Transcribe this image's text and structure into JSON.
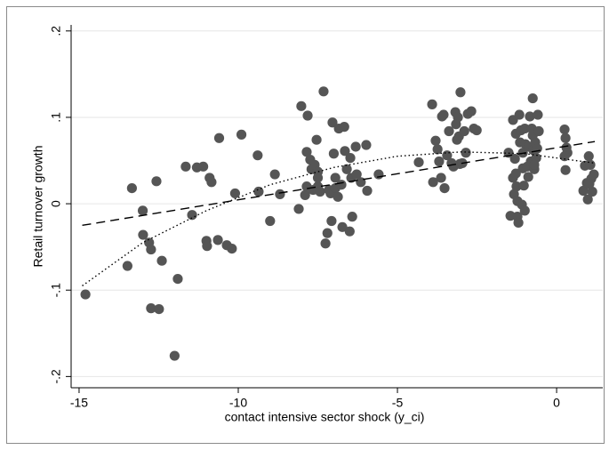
{
  "chart_data": {
    "type": "scatter",
    "x_label": "contact intensive sector shock (y_ci)",
    "y_label": "Retail turnover growth",
    "xlim": [
      -15.25,
      1.45
    ],
    "ylim": [
      -0.213,
      0.207
    ],
    "xticks": [
      -15,
      -10,
      -5,
      0
    ],
    "yticks": [
      {
        "value": 0.2,
        "label": ".2"
      },
      {
        "value": 0.1,
        "label": ".1"
      },
      0,
      {
        "value": -0.1,
        "label": "-.1"
      },
      {
        "value": -0.2,
        "label": "-.2"
      }
    ],
    "grid": true,
    "series": [
      {
        "mark": "point",
        "color": "#555555",
        "x": [
          -14.8,
          -13.48,
          -13.34,
          -13.0,
          -12.99,
          -12.8,
          -12.74,
          -12.74,
          -12.57,
          -12.49,
          -12.4,
          -12.0,
          -11.9,
          -11.65,
          -11.45,
          -11.3,
          -11.1,
          -11.0,
          -10.98,
          -10.9,
          -10.84,
          -10.64,
          -10.6,
          -10.36,
          -10.2,
          -10.1,
          -9.9,
          -9.39,
          -9.36,
          -9.0,
          -8.85,
          -8.69,
          -8.1,
          -8.02,
          -7.9,
          -7.85,
          -7.85,
          -7.82,
          -7.74,
          -7.7,
          -7.65,
          -7.6,
          -7.5,
          -7.5,
          -7.5,
          -7.54,
          -7.43,
          -7.32,
          -7.26,
          -7.2,
          -7.15,
          -7.1,
          -7.07,
          -7.04,
          -7.0,
          -6.95,
          -6.95,
          -6.87,
          -6.84,
          -6.76,
          -6.73,
          -6.67,
          -6.65,
          -6.59,
          -6.5,
          -6.48,
          -6.45,
          -6.42,
          -6.31,
          -6.28,
          -6.15,
          -5.98,
          -5.95,
          -5.59,
          -4.33,
          -3.91,
          -3.88,
          -3.8,
          -3.74,
          -3.69,
          -3.63,
          -3.6,
          -3.55,
          -3.52,
          -3.44,
          -3.38,
          -3.3,
          -3.24,
          -3.18,
          -3.16,
          -3.13,
          -3.1,
          -3.07,
          -3.04,
          -3.02,
          -2.96,
          -2.9,
          -2.85,
          -2.79,
          -2.68,
          -2.6,
          -2.51,
          -1.51,
          -1.45,
          -1.37,
          -1.37,
          -1.34,
          -1.31,
          -1.28,
          -1.28,
          -1.26,
          -1.23,
          -1.23,
          -1.2,
          -1.17,
          -1.15,
          -1.12,
          -1.09,
          -1.06,
          -1.06,
          -1.03,
          -1.0,
          -1.0,
          -0.98,
          -0.92,
          -0.89,
          -0.87,
          -0.84,
          -0.81,
          -0.78,
          -0.75,
          -0.73,
          -0.7,
          -0.67,
          -0.64,
          -0.61,
          -0.59,
          -0.56,
          -0.75,
          -0.7,
          0.25,
          0.28,
          0.31,
          0.28,
          0.34,
          0.25,
          0.84,
          0.89,
          0.95,
          0.98,
          1.01,
          1.06,
          1.09,
          1.12,
          1.17,
          1.03
        ],
        "values": [
          -0.105,
          -0.072,
          0.018,
          -0.008,
          -0.036,
          -0.045,
          -0.053,
          -0.121,
          0.026,
          -0.122,
          -0.066,
          -0.176,
          -0.087,
          0.043,
          -0.013,
          0.042,
          0.043,
          -0.043,
          -0.049,
          0.03,
          0.025,
          -0.042,
          0.076,
          -0.048,
          -0.052,
          0.012,
          0.08,
          0.056,
          0.014,
          -0.02,
          0.034,
          0.011,
          -0.006,
          0.113,
          0.01,
          0.06,
          0.02,
          0.102,
          0.051,
          0.04,
          0.016,
          0.045,
          0.02,
          0.037,
          0.03,
          0.074,
          0.014,
          0.13,
          -0.046,
          -0.034,
          0.016,
          0.012,
          -0.02,
          0.094,
          0.058,
          0.03,
          0.018,
          0.008,
          0.087,
          0.022,
          -0.027,
          0.089,
          0.061,
          0.04,
          -0.032,
          0.053,
          0.03,
          -0.015,
          0.066,
          0.034,
          0.025,
          0.068,
          0.015,
          0.034,
          0.048,
          0.115,
          0.025,
          0.073,
          0.063,
          0.049,
          0.03,
          0.101,
          0.103,
          0.018,
          0.056,
          0.084,
          0.047,
          0.043,
          0.106,
          0.092,
          0.074,
          0.1,
          0.078,
          0.046,
          0.129,
          0.047,
          0.084,
          0.059,
          0.104,
          0.107,
          0.087,
          0.085,
          0.059,
          -0.014,
          0.03,
          0.097,
          0.011,
          0.052,
          0.081,
          0.035,
          0.02,
          -0.015,
          0.003,
          -0.022,
          0.103,
          0.071,
          0.085,
          -0.001,
          0.041,
          0.059,
          0.021,
          -0.008,
          0.087,
          0.069,
          0.043,
          0.031,
          0.066,
          0.101,
          0.049,
          0.087,
          0.079,
          0.062,
          0.04,
          0.071,
          0.053,
          0.064,
          0.103,
          0.084,
          0.122,
          0.045,
          0.086,
          0.076,
          0.065,
          0.039,
          0.059,
          0.055,
          0.015,
          0.044,
          0.024,
          0.005,
          0.055,
          0.045,
          0.029,
          0.014,
          0.034,
          0.023
        ]
      },
      {
        "mark": "dash",
        "color": "#000000",
        "x": [
          -14.9,
          1.2
        ],
        "values": [
          -0.025,
          0.072
        ]
      },
      {
        "mark": "dot",
        "color": "#000000",
        "x": [
          -14.9,
          -13,
          -11,
          -9,
          -7,
          -5,
          -3,
          -1,
          1.2
        ],
        "values": [
          -0.095,
          -0.045,
          -0.008,
          0.022,
          0.042,
          0.055,
          0.06,
          0.058,
          0.047
        ]
      }
    ]
  }
}
